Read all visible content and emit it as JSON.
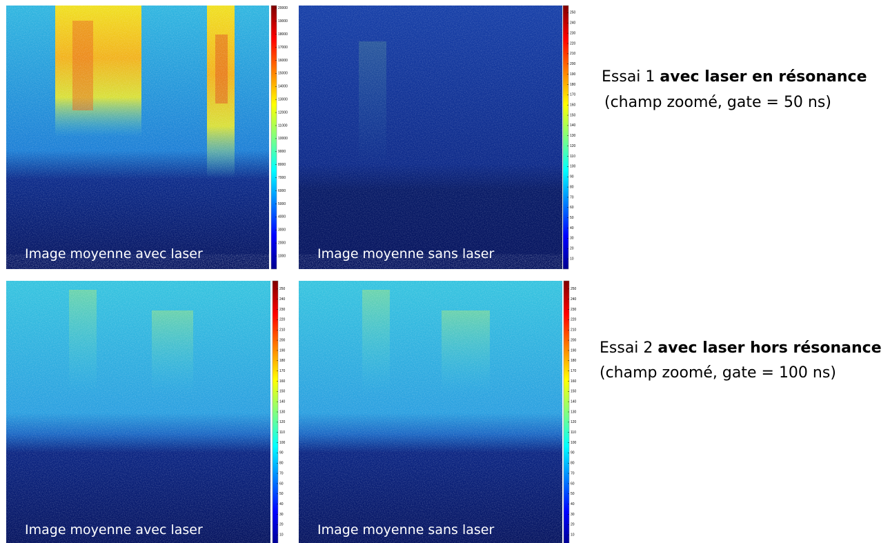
{
  "panels": [
    {
      "caption": "Image moyenne avec laser",
      "colorbar": {
        "lim": [
          0,
          20200
        ],
        "ticks": [
          1000,
          2000,
          3000,
          4000,
          5000,
          6000,
          7000,
          8000,
          9000,
          10000,
          11000,
          12000,
          13000,
          14000,
          15000,
          16000,
          17000,
          18000,
          19000,
          20000
        ]
      }
    },
    {
      "caption": "Image moyenne sans laser",
      "colorbar": {
        "lim": [
          0,
          257
        ],
        "ticks": [
          10,
          20,
          30,
          40,
          50,
          60,
          70,
          80,
          90,
          100,
          110,
          120,
          130,
          140,
          150,
          160,
          170,
          180,
          190,
          200,
          210,
          220,
          230,
          240,
          250
        ]
      }
    },
    {
      "caption": "Image moyenne avec laser",
      "colorbar": {
        "lim": [
          0,
          258
        ],
        "ticks": [
          10,
          20,
          30,
          40,
          50,
          60,
          70,
          80,
          90,
          100,
          110,
          120,
          130,
          140,
          150,
          160,
          170,
          180,
          190,
          200,
          210,
          220,
          230,
          240,
          250
        ]
      }
    },
    {
      "caption": "Image moyenne sans laser",
      "colorbar": {
        "lim": [
          0,
          258
        ],
        "ticks": [
          10,
          20,
          30,
          40,
          50,
          60,
          70,
          80,
          90,
          100,
          110,
          120,
          130,
          140,
          150,
          160,
          170,
          180,
          190,
          200,
          210,
          220,
          230,
          240,
          250
        ]
      }
    }
  ],
  "notes": [
    {
      "prefix": "Essai 1",
      "bold": "avec laser en résonance",
      "detail": "(champ zoomé, gate = 50 ns)"
    },
    {
      "prefix": "Essai 2",
      "bold": "avec laser hors résonance",
      "detail": "(champ zoomé, gate = 100 ns)"
    }
  ]
}
